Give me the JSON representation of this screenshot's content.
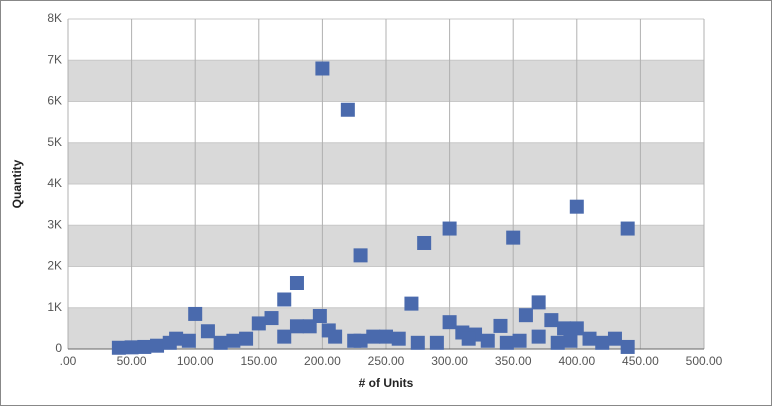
{
  "chart_data": {
    "type": "scatter",
    "x_label": "# of Units",
    "y_label": "Quantity",
    "series": [
      {
        "color": "#4a6aad",
        "x": [
          200,
          220,
          230,
          280,
          300,
          350,
          400,
          440,
          270,
          370,
          180,
          170,
          100,
          160,
          150,
          198,
          300,
          340,
          360,
          380,
          390,
          400,
          110,
          180,
          190,
          205,
          85,
          95,
          120,
          140,
          170,
          230,
          240,
          250,
          260,
          290,
          310,
          320,
          330,
          345,
          370,
          395,
          410,
          420,
          430,
          440,
          40,
          50,
          60,
          70,
          80,
          130,
          210,
          225,
          275,
          315,
          355,
          385
        ],
        "y": [
          6800,
          5800,
          2270,
          2570,
          2920,
          2700,
          3450,
          2920,
          1100,
          1130,
          1600,
          1200,
          850,
          750,
          620,
          800,
          650,
          560,
          820,
          700,
          500,
          500,
          430,
          550,
          550,
          450,
          250,
          200,
          150,
          250,
          300,
          200,
          300,
          300,
          250,
          150,
          400,
          350,
          200,
          150,
          300,
          200,
          250,
          150,
          250,
          50,
          30,
          40,
          50,
          80,
          150,
          200,
          300,
          200,
          150,
          250,
          200,
          150
        ]
      }
    ],
    "xlim": [
      0,
      500
    ],
    "xticks": [
      {
        "value": 0,
        "label": ".00"
      },
      {
        "value": 50,
        "label": "50.00"
      },
      {
        "value": 100,
        "label": "100.00"
      },
      {
        "value": 150,
        "label": "150.00"
      },
      {
        "value": 200,
        "label": "200.00"
      },
      {
        "value": 250,
        "label": "250.00"
      },
      {
        "value": 300,
        "label": "300.00"
      },
      {
        "value": 350,
        "label": "350.00"
      },
      {
        "value": 400,
        "label": "400.00"
      },
      {
        "value": 450,
        "label": "450.00"
      },
      {
        "value": 500,
        "label": "500.00"
      }
    ],
    "ylim": [
      0,
      8000
    ],
    "yticks": [
      0,
      {
        "value": 1000,
        "label": "1K"
      },
      {
        "value": 2000,
        "label": "2K"
      },
      {
        "value": 3000,
        "label": "3K"
      },
      {
        "value": 4000,
        "label": "4K"
      },
      {
        "value": 5000,
        "label": "5K"
      },
      {
        "value": 6000,
        "label": "6K"
      },
      {
        "value": 7000,
        "label": "7K"
      },
      {
        "value": 8000,
        "label": "8K"
      }
    ],
    "grid": true
  }
}
